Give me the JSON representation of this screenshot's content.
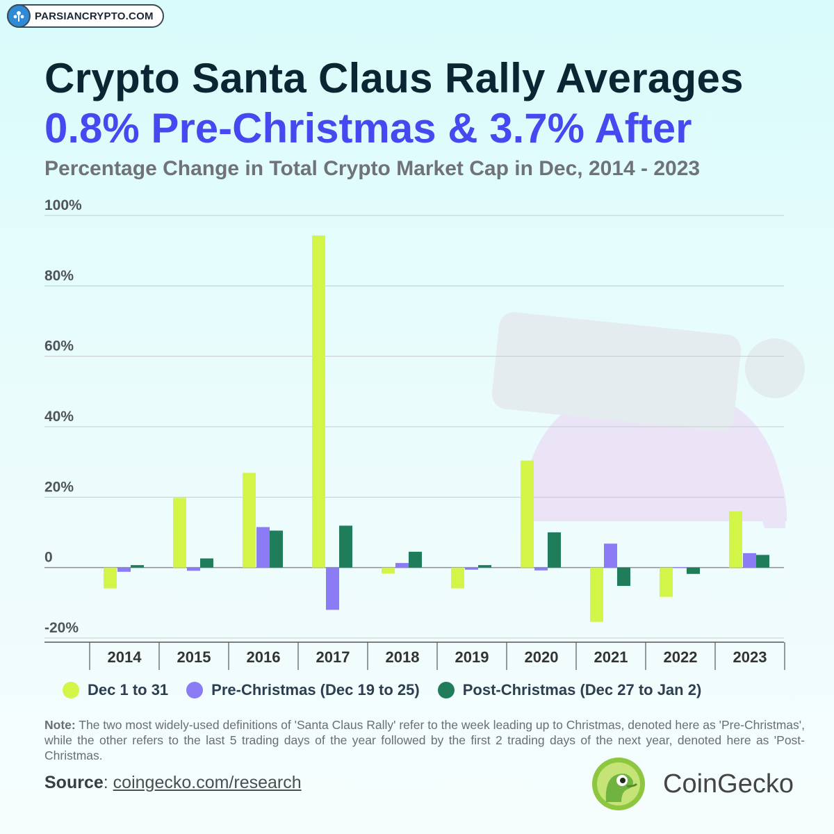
{
  "badge": {
    "text": "PARSIANCRYPTO.COM"
  },
  "header": {
    "title": "Crypto Santa Claus Rally Averages",
    "subtitle": "0.8% Pre-Christmas & 3.7% After",
    "chart_title": "Percentage Change in Total Crypto Market Cap in Dec, 2014 - 2023"
  },
  "colors": {
    "dec_1_to_31": "#d3f547",
    "pre_christmas": "#8b7cf6",
    "post_christmas": "#1f7d5c",
    "title": "#0b2533",
    "subtitle": "#4649f0"
  },
  "chart_data": {
    "type": "bar",
    "title": "Percentage Change in Total Crypto Market Cap in Dec, 2014 - 2023",
    "categories": [
      "2014",
      "2015",
      "2016",
      "2017",
      "2018",
      "2019",
      "2020",
      "2021",
      "2022",
      "2023"
    ],
    "series": [
      {
        "name": "Dec 1 to 31",
        "values": [
          -5.9,
          19.8,
          26.9,
          94.3,
          -1.7,
          -5.9,
          30.4,
          -15.4,
          -8.3,
          16.0
        ]
      },
      {
        "name": "Pre-Christmas (Dec 19 to 25)",
        "values": [
          -1.2,
          -0.9,
          11.5,
          -12.0,
          1.3,
          -0.6,
          -0.8,
          6.8,
          0.1,
          4.1
        ]
      },
      {
        "name": "Post-Christmas (Dec 27 to Jan 2)",
        "values": [
          0.7,
          2.6,
          10.5,
          11.9,
          4.5,
          0.7,
          10.0,
          -5.2,
          -1.8,
          3.6
        ]
      }
    ],
    "ylim": [
      -20,
      100
    ],
    "yticks": [
      -20,
      0,
      20,
      40,
      60,
      80,
      100
    ],
    "ytick_labels": [
      "-20%",
      "0",
      "20%",
      "40%",
      "60%",
      "80%",
      "100%"
    ],
    "grid": true,
    "legend": "bottom"
  },
  "legend": [
    {
      "label": "Dec 1 to 31"
    },
    {
      "label": "Pre-Christmas (Dec 19 to 25)"
    },
    {
      "label": "Post-Christmas (Dec 27 to Jan 2)"
    }
  ],
  "footer": {
    "note_label": "Note:",
    "note_text": " The two most widely-used definitions of 'Santa Claus Rally' refer to the week leading up to Christmas, denoted here as 'Pre-Christmas', while the other refers to the last 5 trading days of the year followed by the first 2 trading days of the next year, denoted here as 'Post-Christmas.",
    "source_label": "Source",
    "source_sep": ": ",
    "source_link": "coingecko.com/research",
    "brand": "CoinGecko"
  }
}
